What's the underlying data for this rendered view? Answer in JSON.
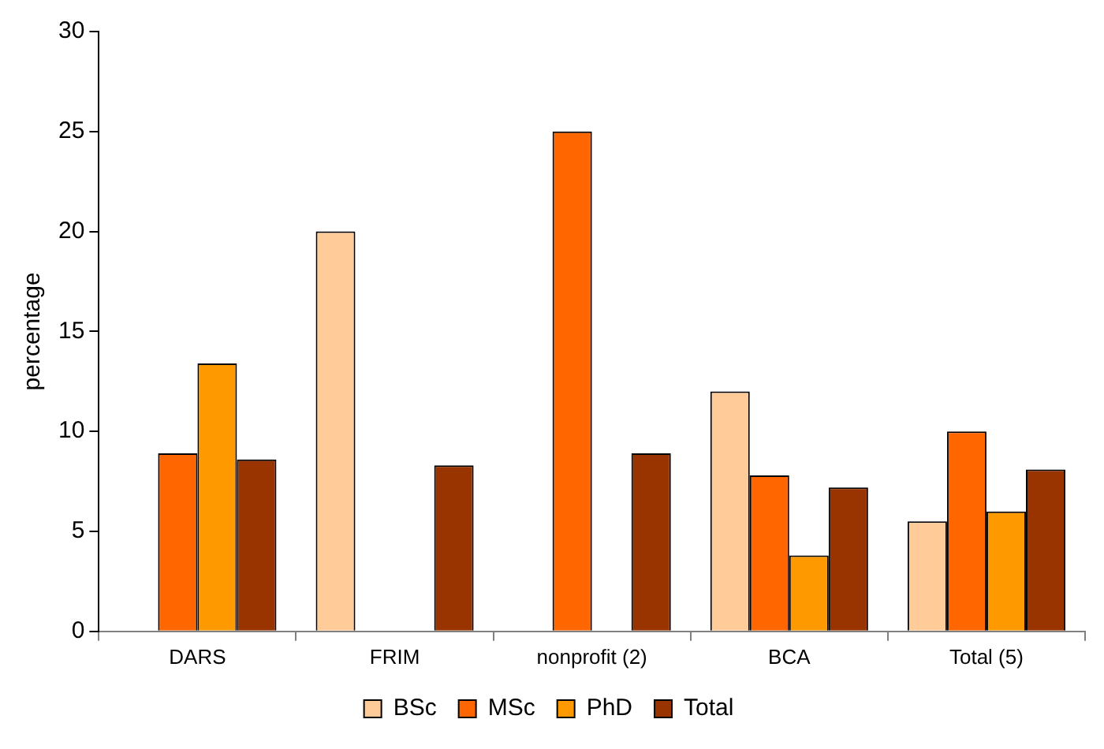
{
  "chart_data": {
    "type": "bar",
    "ylabel": "percentage",
    "categories": [
      "DARS",
      "FRIM",
      "nonprofit (2)",
      "BCA",
      "Total (5)"
    ],
    "series": [
      {
        "name": "BSc",
        "color": "#ffcc99",
        "values": [
          null,
          20,
          null,
          12,
          5.5
        ]
      },
      {
        "name": "MSc",
        "color": "#ff6600",
        "values": [
          8.9,
          null,
          25,
          7.8,
          10
        ]
      },
      {
        "name": "PhD",
        "color": "#ff9900",
        "values": [
          13.4,
          null,
          null,
          3.8,
          6
        ]
      },
      {
        "name": "Total",
        "color": "#993300",
        "values": [
          8.6,
          8.3,
          8.9,
          7.2,
          8.1
        ]
      }
    ],
    "ylim": [
      0,
      30
    ],
    "yticks": [
      0,
      5,
      10,
      15,
      20,
      25,
      30
    ],
    "grid": false,
    "legend": "bottom"
  }
}
